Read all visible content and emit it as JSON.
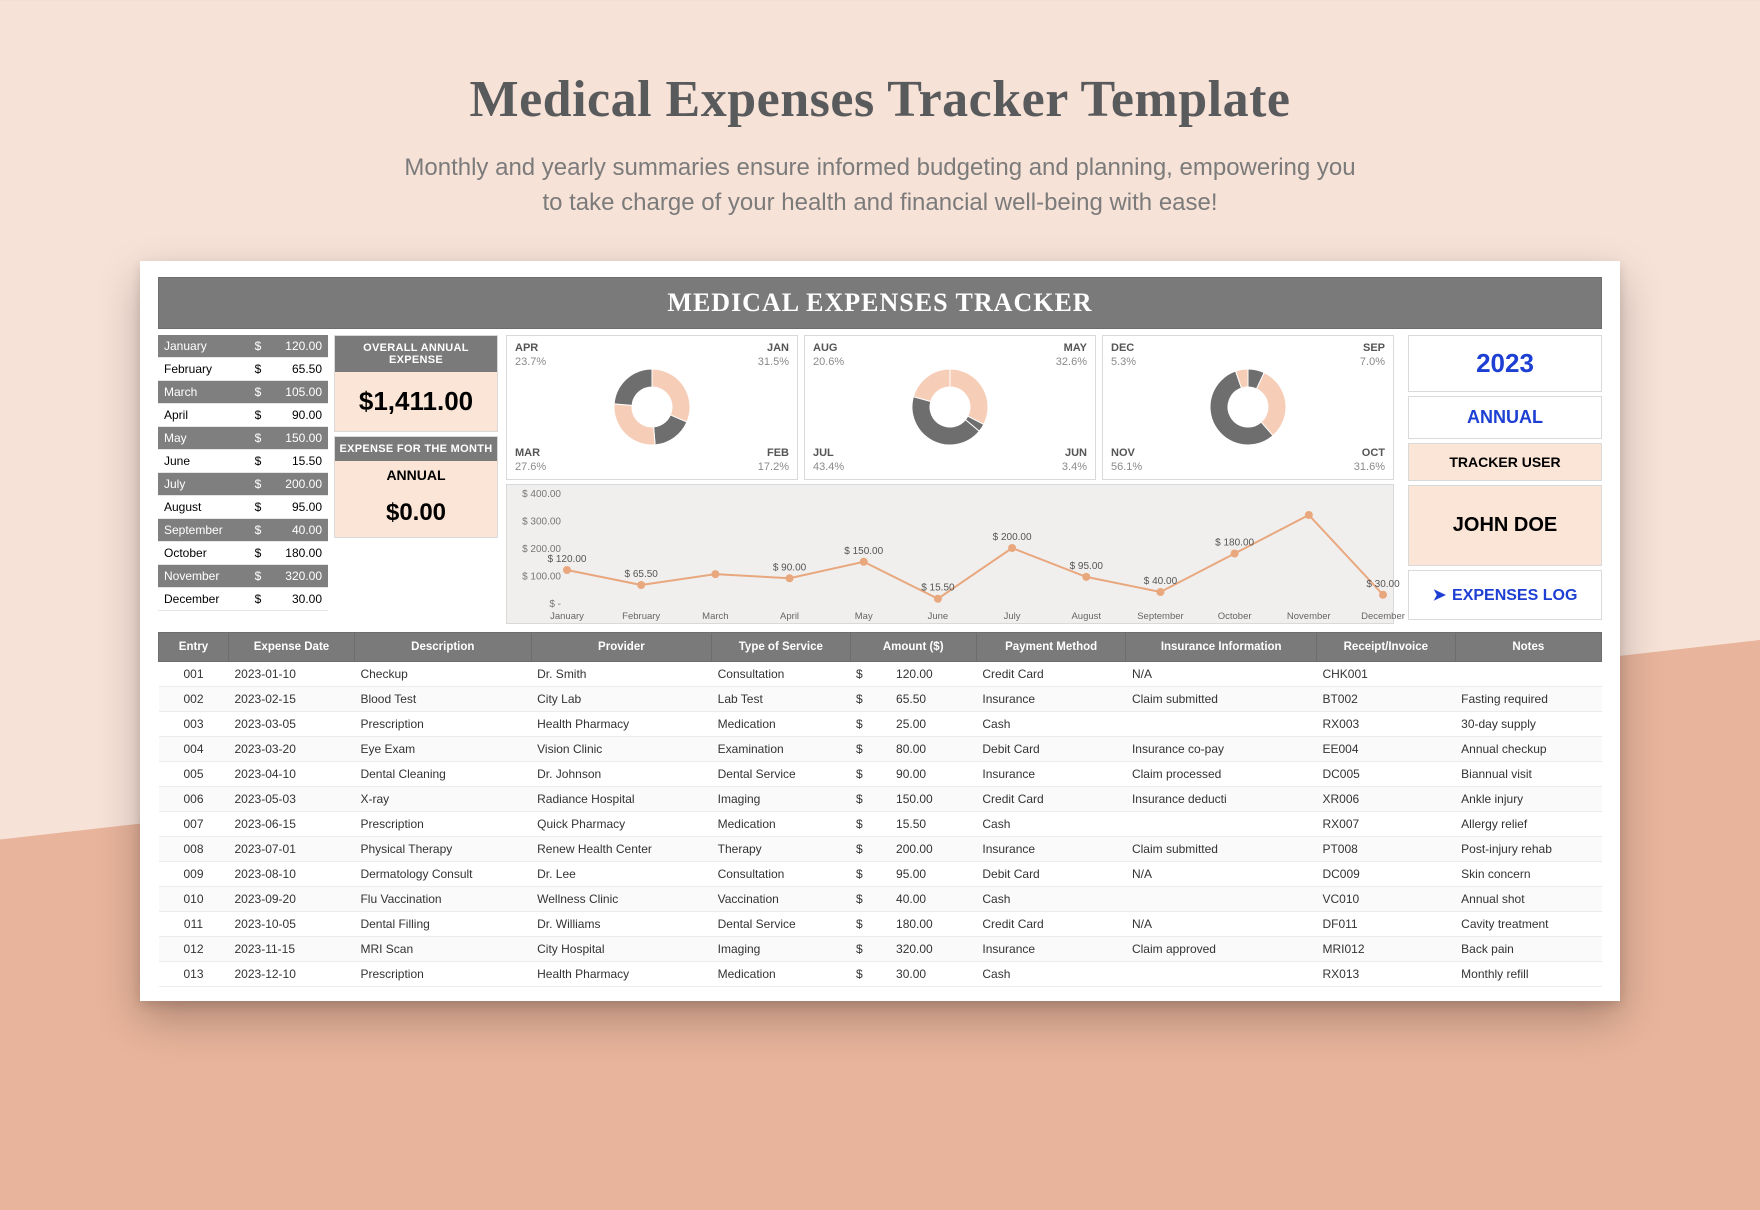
{
  "page": {
    "title": "Medical Expenses Tracker Template",
    "subtitle_line1": "Monthly and yearly summaries ensure informed budgeting and planning, empowering you",
    "subtitle_line2": "to take charge of your health and financial well-being with ease!"
  },
  "tracker": {
    "banner": "MEDICAL EXPENSES TRACKER",
    "year": "2023",
    "annual_label": "ANNUAL",
    "user_head": "TRACKER USER",
    "user_name": "JOHN DOE",
    "log_link": "EXPENSES LOG",
    "kpi1_head": "OVERALL ANNUAL EXPENSE",
    "kpi1_val": "$1,411.00",
    "kpi2_head": "EXPENSE FOR THE MONTH",
    "kpi2_mid": "ANNUAL",
    "kpi2_val": "$0.00"
  },
  "months": [
    {
      "name": "January",
      "value": "120.00",
      "shaded": true
    },
    {
      "name": "February",
      "value": "65.50",
      "shaded": false
    },
    {
      "name": "March",
      "value": "105.00",
      "shaded": true
    },
    {
      "name": "April",
      "value": "90.00",
      "shaded": false
    },
    {
      "name": "May",
      "value": "150.00",
      "shaded": true
    },
    {
      "name": "June",
      "value": "15.50",
      "shaded": false
    },
    {
      "name": "July",
      "value": "200.00",
      "shaded": true
    },
    {
      "name": "August",
      "value": "95.00",
      "shaded": false
    },
    {
      "name": "September",
      "value": "40.00",
      "shaded": true
    },
    {
      "name": "October",
      "value": "180.00",
      "shaded": false
    },
    {
      "name": "November",
      "value": "320.00",
      "shaded": true
    },
    {
      "name": "December",
      "value": "30.00",
      "shaded": false
    }
  ],
  "donuts": [
    {
      "labels": [
        {
          "code": "APR",
          "pct": "23.7%",
          "pos": "tl"
        },
        {
          "code": "JAN",
          "pct": "31.5%",
          "pos": "tr"
        },
        {
          "code": "MAR",
          "pct": "27.6%",
          "pos": "bl"
        },
        {
          "code": "FEB",
          "pct": "17.2%",
          "pos": "br"
        }
      ],
      "slices": [
        31.5,
        17.2,
        27.6,
        23.7
      ],
      "colors": [
        "#f6cdb7",
        "#6e6e6e",
        "#f6cdb7",
        "#6e6e6e"
      ]
    },
    {
      "labels": [
        {
          "code": "AUG",
          "pct": "20.6%",
          "pos": "tl"
        },
        {
          "code": "MAY",
          "pct": "32.6%",
          "pos": "tr"
        },
        {
          "code": "JUL",
          "pct": "43.4%",
          "pos": "bl"
        },
        {
          "code": "JUN",
          "pct": "3.4%",
          "pos": "br"
        }
      ],
      "slices": [
        32.6,
        3.4,
        43.4,
        20.6
      ],
      "colors": [
        "#f6cdb7",
        "#6e6e6e",
        "#6e6e6e",
        "#f6cdb7"
      ]
    },
    {
      "labels": [
        {
          "code": "DEC",
          "pct": "5.3%",
          "pos": "tl"
        },
        {
          "code": "SEP",
          "pct": "7.0%",
          "pos": "tr"
        },
        {
          "code": "NOV",
          "pct": "56.1%",
          "pos": "bl"
        },
        {
          "code": "OCT",
          "pct": "31.6%",
          "pos": "br"
        }
      ],
      "slices": [
        7.0,
        31.6,
        56.1,
        5.3
      ],
      "colors": [
        "#6e6e6e",
        "#f6cdb7",
        "#6e6e6e",
        "#f6cdb7"
      ]
    }
  ],
  "line": {
    "y_ticks": [
      "$ 400.00",
      "$ 300.00",
      "$ 200.00",
      "$ 100.00",
      "$ -"
    ],
    "y_max": 400,
    "categories": [
      "January",
      "February",
      "March",
      "April",
      "May",
      "June",
      "July",
      "August",
      "September",
      "October",
      "November",
      "December"
    ],
    "values": [
      120,
      65.5,
      105,
      90,
      150,
      15.5,
      200,
      95,
      40,
      180,
      320,
      30
    ],
    "labels": [
      "$ 120.00",
      "$ 65.50",
      "",
      "$ 90.00",
      "$ 150.00",
      "$ 15.50",
      "$ 200.00",
      "$ 95.00",
      "$ 40.00",
      "$ 180.00",
      "",
      "$ 30.00"
    ],
    "line_color": "#e9a77e",
    "marker_color": "#e9a77e",
    "bg_color": "#f0efee"
  },
  "table": {
    "headers": [
      "Entry",
      "Expense Date",
      "Description",
      "Provider",
      "Type of Service",
      "Amount ($)",
      "Payment Method",
      "Insurance Information",
      "Receipt/Invoice",
      "Notes"
    ],
    "rows": [
      [
        "001",
        "2023-01-10",
        "Checkup",
        "Dr. Smith",
        "Consultation",
        "120.00",
        "Credit Card",
        "N/A",
        "CHK001",
        ""
      ],
      [
        "002",
        "2023-02-15",
        "Blood Test",
        "City Lab",
        "Lab Test",
        "65.50",
        "Insurance",
        "Claim submitted",
        "BT002",
        "Fasting required"
      ],
      [
        "003",
        "2023-03-05",
        "Prescription",
        "Health Pharmacy",
        "Medication",
        "25.00",
        "Cash",
        "",
        "RX003",
        "30-day supply"
      ],
      [
        "004",
        "2023-03-20",
        "Eye Exam",
        "Vision Clinic",
        "Examination",
        "80.00",
        "Debit Card",
        "Insurance co-pay",
        "EE004",
        "Annual checkup"
      ],
      [
        "005",
        "2023-04-10",
        "Dental Cleaning",
        "Dr. Johnson",
        "Dental Service",
        "90.00",
        "Insurance",
        "Claim processed",
        "DC005",
        "Biannual visit"
      ],
      [
        "006",
        "2023-05-03",
        "X-ray",
        "Radiance Hospital",
        "Imaging",
        "150.00",
        "Credit Card",
        "Insurance deducti",
        "XR006",
        "Ankle injury"
      ],
      [
        "007",
        "2023-06-15",
        "Prescription",
        "Quick Pharmacy",
        "Medication",
        "15.50",
        "Cash",
        "",
        "RX007",
        "Allergy relief"
      ],
      [
        "008",
        "2023-07-01",
        "Physical Therapy",
        "Renew Health Center",
        "Therapy",
        "200.00",
        "Insurance",
        "Claim submitted",
        "PT008",
        "Post-injury rehab"
      ],
      [
        "009",
        "2023-08-10",
        "Dermatology Consult",
        "Dr. Lee",
        "Consultation",
        "95.00",
        "Debit Card",
        "N/A",
        "DC009",
        "Skin concern"
      ],
      [
        "010",
        "2023-09-20",
        "Flu Vaccination",
        "Wellness Clinic",
        "Vaccination",
        "40.00",
        "Cash",
        "",
        "VC010",
        "Annual shot"
      ],
      [
        "011",
        "2023-10-05",
        "Dental Filling",
        "Dr. Williams",
        "Dental Service",
        "180.00",
        "Credit Card",
        "N/A",
        "DF011",
        "Cavity treatment"
      ],
      [
        "012",
        "2023-11-15",
        "MRI Scan",
        "City Hospital",
        "Imaging",
        "320.00",
        "Insurance",
        "Claim approved",
        "MRI012",
        "Back pain"
      ],
      [
        "013",
        "2023-12-10",
        "Prescription",
        "Health Pharmacy",
        "Medication",
        "30.00",
        "Cash",
        "",
        "RX013",
        "Monthly refill"
      ]
    ]
  }
}
